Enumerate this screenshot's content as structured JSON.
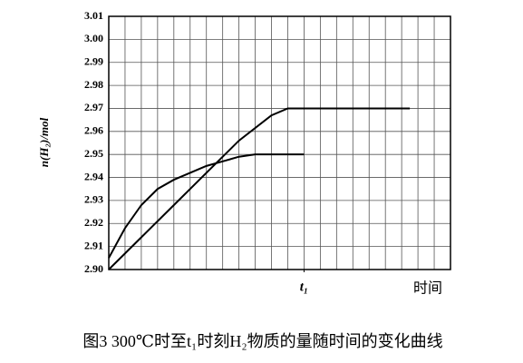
{
  "chart_data": {
    "type": "line",
    "y_label": "n(H₂)/mol",
    "x_label": "时间",
    "caption": "图3  300℃时至t₁时刻H₂物质的量随时间的变化曲线",
    "xlim": [
      0,
      21
    ],
    "xticks": [
      {
        "value": 12,
        "label": "t₁"
      }
    ],
    "ylim": [
      2.9,
      3.01
    ],
    "yticks": [
      {
        "value": 2.9,
        "label": "2.90"
      },
      2.91,
      2.92,
      2.93,
      2.94,
      2.95,
      2.96,
      2.97,
      2.98,
      2.99,
      {
        "value": 3.0,
        "label": "3.00"
      },
      3.01
    ],
    "grid": true,
    "series": [
      {
        "color": "#000000",
        "x": [
          0,
          1,
          2,
          3,
          4,
          5,
          6,
          7,
          8,
          9,
          10,
          11,
          12
        ],
        "values": [
          2.905,
          2.918,
          2.928,
          2.935,
          2.939,
          2.942,
          2.945,
          2.947,
          2.949,
          2.95,
          2.95,
          2.95,
          2.95
        ]
      },
      {
        "color": "#000000",
        "x": [
          0,
          2,
          4,
          6,
          8,
          10,
          11,
          12,
          14,
          16,
          18.5
        ],
        "values": [
          2.9,
          2.914,
          2.928,
          2.942,
          2.956,
          2.967,
          2.97,
          2.97,
          2.97,
          2.97,
          2.97
        ]
      }
    ]
  }
}
